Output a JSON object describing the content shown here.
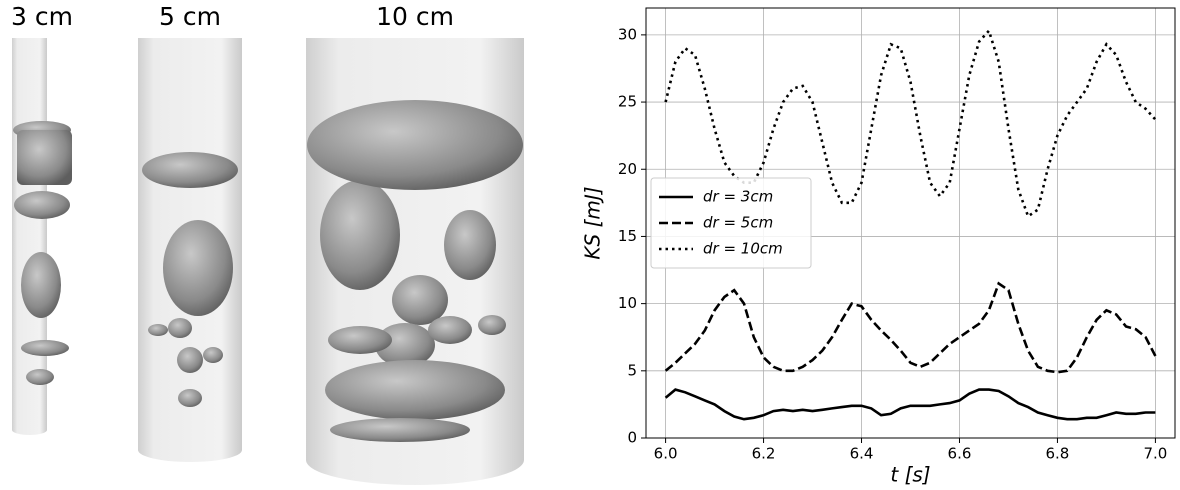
{
  "panels": [
    {
      "label": "3 cm"
    },
    {
      "label": "5 cm"
    },
    {
      "label": "10 cm"
    }
  ],
  "chart_data": {
    "type": "line",
    "xlabel": "t [s]",
    "ylabel": "KS [mJ]",
    "x": [
      6.0,
      6.02,
      6.04,
      6.06,
      6.08,
      6.1,
      6.12,
      6.14,
      6.16,
      6.18,
      6.2,
      6.22,
      6.24,
      6.26,
      6.28,
      6.3,
      6.32,
      6.34,
      6.36,
      6.38,
      6.4,
      6.42,
      6.44,
      6.46,
      6.48,
      6.5,
      6.52,
      6.54,
      6.56,
      6.58,
      6.6,
      6.62,
      6.64,
      6.66,
      6.68,
      6.7,
      6.72,
      6.74,
      6.76,
      6.78,
      6.8,
      6.82,
      6.84,
      6.86,
      6.88,
      6.9,
      6.92,
      6.94,
      6.96,
      6.98,
      7.0
    ],
    "series": [
      {
        "name": "dr = 3cm",
        "color": "#000000",
        "linestyle": "solid",
        "values": [
          3,
          3.6,
          3.4,
          3.1,
          2.8,
          2.5,
          2.0,
          1.6,
          1.4,
          1.5,
          1.7,
          2.0,
          2.1,
          2.0,
          2.1,
          2.0,
          2.1,
          2.2,
          2.3,
          2.4,
          2.4,
          2.2,
          1.7,
          1.8,
          2.2,
          2.4,
          2.4,
          2.4,
          2.5,
          2.6,
          2.8,
          3.3,
          3.6,
          3.6,
          3.5,
          3.1,
          2.6,
          2.3,
          1.9,
          1.7,
          1.5,
          1.4,
          1.4,
          1.5,
          1.5,
          1.7,
          1.9,
          1.8,
          1.8,
          1.9,
          1.9
        ]
      },
      {
        "name": "dr = 5cm",
        "color": "#000000",
        "linestyle": "dashed",
        "values": [
          5,
          5.6,
          6.3,
          7,
          8,
          9.5,
          10.5,
          11,
          10,
          7.5,
          6,
          5.3,
          5,
          5,
          5.3,
          5.8,
          6.5,
          7.5,
          8.8,
          10,
          9.8,
          8.8,
          8,
          7.3,
          6.5,
          5.6,
          5.3,
          5.6,
          6.3,
          7,
          7.5,
          8,
          8.5,
          9.5,
          11.5,
          11,
          8.5,
          6.5,
          5.3,
          5,
          4.9,
          5,
          6,
          7.5,
          8.8,
          9.5,
          9.2,
          8.3,
          8.1,
          7.5,
          6.1
        ]
      },
      {
        "name": "dr = 10cm",
        "color": "#000000",
        "linestyle": "dotted",
        "values": [
          25,
          28,
          29,
          28.5,
          26,
          23,
          20.5,
          19.5,
          19,
          19,
          20.5,
          23,
          25,
          26,
          26.2,
          25,
          22,
          19,
          17.5,
          17.5,
          19,
          23,
          27,
          29.3,
          29,
          26.5,
          22.5,
          19,
          18,
          19,
          23,
          27,
          29.5,
          30.3,
          28,
          23,
          18.5,
          16.5,
          17,
          20,
          22.5,
          24,
          25,
          26,
          28,
          29.3,
          28.5,
          26.5,
          25,
          24.5,
          23.7
        ]
      }
    ],
    "xlim": [
      5.96,
      7.04
    ],
    "ylim": [
      0,
      32
    ],
    "xticks": [
      {
        "value": 6,
        "label": "6.0"
      },
      6.2,
      6.4,
      6.6,
      6.8,
      {
        "value": 7,
        "label": "7.0"
      }
    ],
    "yticks": [
      0,
      5,
      10,
      15,
      20,
      25,
      30
    ],
    "grid": true,
    "legend": "center left"
  }
}
